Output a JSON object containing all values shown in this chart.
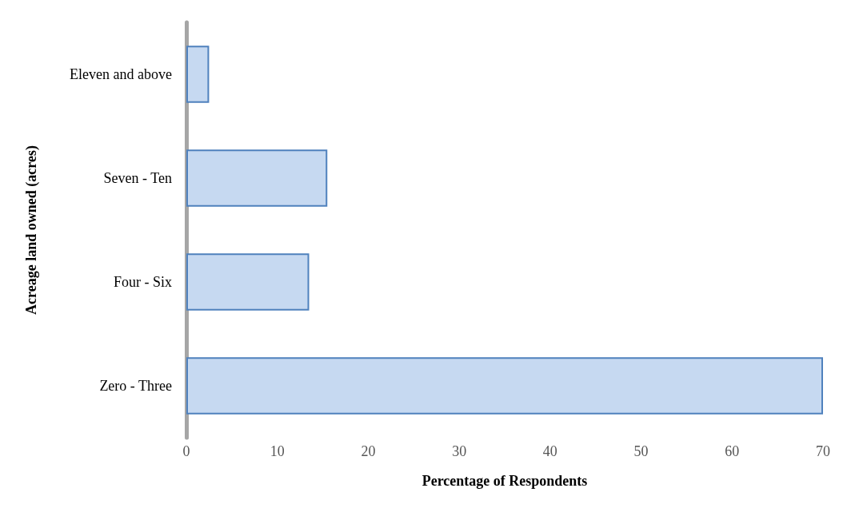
{
  "chart_data": {
    "type": "bar",
    "orientation": "horizontal",
    "xlabel": "Percentage of Respondents",
    "ylabel": "Acreage land owned (acres)",
    "categories": [
      "Eleven and above",
      "Seven - Ten",
      "Four - Six",
      "Zero - Three"
    ],
    "values": [
      2.5,
      15.5,
      13.5,
      70
    ],
    "color": "#c6d9f1",
    "xlim": [
      0,
      70
    ],
    "xticks": [
      0,
      10,
      20,
      30,
      40,
      50,
      60,
      70
    ],
    "grid": false
  }
}
